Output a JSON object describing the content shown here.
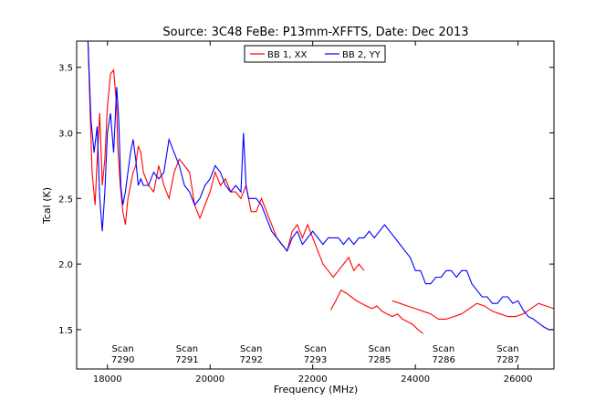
{
  "chart_data": {
    "type": "line",
    "title": "Source: 3C48 FeBe: P13mm-XFFTS, Date: Dec 2013",
    "xlabel": "Frequency (MHz)",
    "ylabel": "Tcal (K)",
    "xlim": [
      17400,
      26700
    ],
    "ylim": [
      1.2,
      3.7
    ],
    "x_ticks": [
      18000,
      20000,
      22000,
      24000,
      26000
    ],
    "y_ticks": [
      1.5,
      2.0,
      2.5,
      3.0,
      3.5
    ],
    "x_tick_labels": [
      "18000",
      "20000",
      "22000",
      "24000",
      "26000"
    ],
    "y_tick_labels": [
      "1.5",
      "2.0",
      "2.5",
      "3.0",
      "3.5"
    ],
    "grid": false,
    "legend_position": "top-center",
    "series": [
      {
        "name": "BB 1, XX",
        "color": "#ff0000",
        "segments": [
          {
            "x": [
              17620,
              17700,
              17760,
              17800,
              17850,
              17900,
              17950,
              18000,
              18060,
              18120,
              18180,
              18200,
              18250,
              18300,
              18350,
              18400,
              18450,
              18500,
              18550,
              18600,
              18650,
              18700,
              18800,
              18900,
              19000,
              19100,
              19200,
              19300,
              19400,
              19500,
              19600,
              19700,
              19800,
              19900,
              20000,
              20100,
              20200,
              20300,
              20400,
              20500,
              20600,
              20700,
              20800,
              20900,
              21000,
              21100,
              21200,
              21300,
              21400,
              21500,
              21600,
              21700,
              21800,
              21900,
              22000,
              22100,
              22200,
              22300,
              22400,
              22500,
              22600,
              22700,
              22800,
              22900,
              23000
            ],
            "y": [
              3.7,
              2.7,
              2.45,
              2.8,
              3.15,
              2.6,
              2.8,
              3.2,
              3.45,
              3.48,
              3.2,
              2.9,
              2.6,
              2.4,
              2.3,
              2.5,
              2.6,
              2.7,
              2.75,
              2.9,
              2.85,
              2.7,
              2.6,
              2.55,
              2.75,
              2.6,
              2.5,
              2.7,
              2.8,
              2.75,
              2.7,
              2.45,
              2.35,
              2.45,
              2.55,
              2.7,
              2.6,
              2.65,
              2.55,
              2.55,
              2.5,
              2.6,
              2.4,
              2.4,
              2.5,
              2.4,
              2.3,
              2.2,
              2.15,
              2.1,
              2.25,
              2.3,
              2.2,
              2.3,
              2.2,
              2.1,
              2.0,
              1.95,
              1.9,
              1.95,
              2.0,
              2.05,
              1.95,
              2.0,
              1.95
            ]
          },
          {
            "x": [
              22350,
              22450,
              22550,
              22650,
              22750,
              22850,
              22950,
              23050,
              23150,
              23250,
              23350,
              23450,
              23550,
              23650,
              23750,
              23850,
              23950,
              24050,
              24150
            ],
            "y": [
              1.65,
              1.72,
              1.8,
              1.78,
              1.75,
              1.72,
              1.7,
              1.68,
              1.66,
              1.68,
              1.64,
              1.62,
              1.6,
              1.62,
              1.58,
              1.56,
              1.54,
              1.5,
              1.47
            ]
          },
          {
            "x": [
              23550,
              23700,
              23850,
              24000,
              24150,
              24300,
              24450,
              24600,
              24750,
              24900,
              25050,
              25200,
              25350,
              25500,
              25650,
              25800,
              25950,
              26100,
              26250,
              26400,
              26550,
              26700
            ],
            "y": [
              1.72,
              1.7,
              1.68,
              1.66,
              1.64,
              1.62,
              1.58,
              1.58,
              1.6,
              1.62,
              1.66,
              1.7,
              1.68,
              1.64,
              1.62,
              1.6,
              1.6,
              1.62,
              1.66,
              1.7,
              1.68,
              1.66
            ]
          }
        ]
      },
      {
        "name": "BB 2, YY",
        "color": "#0000ff",
        "segments": [
          {
            "x": [
              17620,
              17680,
              17740,
              17800,
              17850,
              17900,
              17950,
              18000,
              18060,
              18120,
              18180,
              18220,
              18260,
              18300,
              18350,
              18400,
              18450,
              18500,
              18550,
              18600,
              18650,
              18700,
              18800,
              18900,
              19000,
              19100,
              19200,
              19300,
              19400,
              19500,
              19600,
              19700,
              19800,
              19900,
              20000,
              20100,
              20200,
              20300,
              20400,
              20500,
              20600,
              20650,
              20700,
              20750,
              20800,
              20900,
              21000,
              21100,
              21200,
              21300,
              21400,
              21500,
              21600,
              21700,
              21800,
              21900,
              22000,
              22100,
              22200,
              22300,
              22400,
              22500,
              22600,
              22700,
              22800,
              22900,
              23000,
              23100,
              23200,
              23300,
              23400,
              23500,
              23600,
              23700,
              23800,
              23900,
              24000,
              24100,
              24200,
              24300,
              24400,
              24500,
              24600,
              24700,
              24800,
              24900,
              25000,
              25100,
              25200,
              25300,
              25400,
              25500,
              25600,
              25700,
              25800,
              25900,
              26000,
              26100,
              26200,
              26300,
              26400,
              26500,
              26600,
              26700
            ],
            "y": [
              3.7,
              3.1,
              2.85,
              3.05,
              2.5,
              2.25,
              2.55,
              3.0,
              3.15,
              2.85,
              3.35,
              3.1,
              2.6,
              2.45,
              2.55,
              2.7,
              2.85,
              2.95,
              2.8,
              2.6,
              2.65,
              2.6,
              2.6,
              2.7,
              2.65,
              2.7,
              2.95,
              2.85,
              2.75,
              2.6,
              2.55,
              2.45,
              2.5,
              2.6,
              2.65,
              2.75,
              2.7,
              2.6,
              2.55,
              2.6,
              2.55,
              3.0,
              2.6,
              2.5,
              2.5,
              2.5,
              2.45,
              2.35,
              2.25,
              2.2,
              2.15,
              2.1,
              2.2,
              2.25,
              2.15,
              2.2,
              2.25,
              2.2,
              2.15,
              2.2,
              2.2,
              2.2,
              2.15,
              2.2,
              2.15,
              2.2,
              2.2,
              2.25,
              2.2,
              2.25,
              2.3,
              2.25,
              2.2,
              2.15,
              2.1,
              2.05,
              1.95,
              1.95,
              1.85,
              1.85,
              1.9,
              1.9,
              1.95,
              1.95,
              1.9,
              1.95,
              1.95,
              1.85,
              1.8,
              1.75,
              1.75,
              1.7,
              1.7,
              1.75,
              1.75,
              1.7,
              1.72,
              1.65,
              1.6,
              1.58,
              1.55,
              1.52,
              1.5,
              1.5
            ]
          }
        ]
      }
    ],
    "annotations": [
      {
        "x": 18300,
        "lines": [
          "Scan",
          "7290"
        ]
      },
      {
        "x": 19550,
        "lines": [
          "Scan",
          "7291"
        ]
      },
      {
        "x": 20800,
        "lines": [
          "Scan",
          "7292"
        ]
      },
      {
        "x": 22050,
        "lines": [
          "Scan",
          "7293"
        ]
      },
      {
        "x": 23300,
        "lines": [
          "Scan",
          "7285"
        ]
      },
      {
        "x": 24550,
        "lines": [
          "Scan",
          "7286"
        ]
      },
      {
        "x": 25800,
        "lines": [
          "Scan",
          "7287"
        ]
      }
    ]
  }
}
